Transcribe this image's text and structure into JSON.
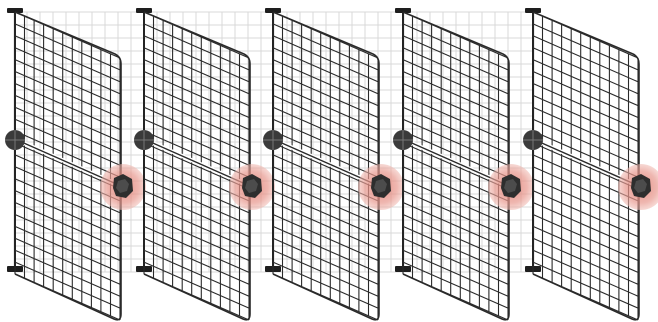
{
  "scene": {
    "panel_count": 5,
    "background_grid": "light-gray-square-grid",
    "colors": {
      "background": "#ffffff",
      "background_grid_line": "#d9d9d9",
      "wire_mesh": "#2a2a2a",
      "post": "#1e1e1e",
      "handle": "#3a3a3a",
      "highlight_halo": "#e8998f"
    },
    "icons": [
      "wire-mesh-panel",
      "vertical-post",
      "post-cap",
      "post-base",
      "hinge-knob",
      "gripper-handle"
    ],
    "panels": [
      {
        "id": "panel-1",
        "handle_highlighted": true
      },
      {
        "id": "panel-2",
        "handle_highlighted": true
      },
      {
        "id": "panel-3",
        "handle_highlighted": true
      },
      {
        "id": "panel-4",
        "handle_highlighted": true
      },
      {
        "id": "panel-5",
        "handle_highlighted": true
      }
    ]
  }
}
